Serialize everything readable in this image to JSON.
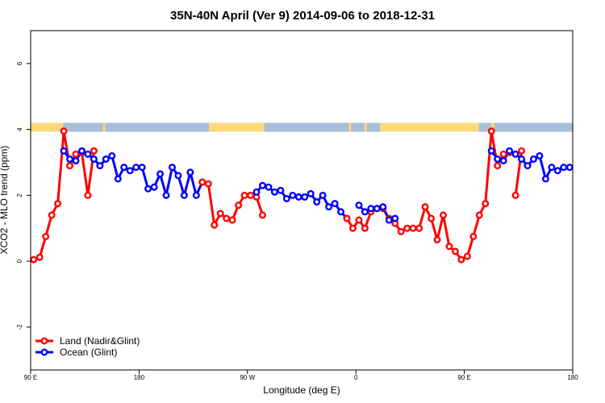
{
  "chart_data": {
    "type": "line",
    "title": "35N-40N April (Ver 9)   2014-09-06 to 2018-12-31",
    "xlabel": "Longitude (deg E)",
    "ylabel": "XCO2 - MLO trend (ppm)",
    "xlim": [
      90,
      540
    ],
    "ylim": [
      -3.3,
      7
    ],
    "x_ticks": [
      {
        "value": 90,
        "label": "90 E"
      },
      {
        "value": 180,
        "label": "180"
      },
      {
        "value": 270,
        "label": "90 W"
      },
      {
        "value": 360,
        "label": "0"
      },
      {
        "value": 450,
        "label": "90 E"
      },
      {
        "value": 540,
        "label": "180"
      }
    ],
    "y_ticks": [
      {
        "value": -2,
        "label": "-2"
      },
      {
        "value": 0,
        "label": "0"
      },
      {
        "value": 2,
        "label": "2"
      },
      {
        "value": 4,
        "label": "4"
      },
      {
        "value": 6,
        "label": "6"
      }
    ],
    "grid": false,
    "legend_position": "bottom-left",
    "land_ocean_strip": {
      "y_bottom": 3.93,
      "y_top": 4.2,
      "land_color": "#fbd97a",
      "ocean_color": "#a7bedb",
      "land_ranges": [
        [
          90,
          117
        ],
        [
          150,
          152
        ],
        [
          238,
          284
        ],
        [
          354,
          356
        ],
        [
          367,
          369
        ],
        [
          380,
          462
        ],
        [
          472,
          475
        ]
      ]
    },
    "series": [
      {
        "name": "Land (Nadir&Glint)",
        "color": "#ff0000",
        "x": [
          92.5,
          97.5,
          102.5,
          107.5,
          112.5,
          117.5,
          122.5,
          127.5,
          132.5,
          137.5,
          142.5
        ],
        "y": [
          0.05,
          0.12,
          0.75,
          1.4,
          1.75,
          3.95,
          2.9,
          3.25,
          3.3,
          2.0,
          3.35
        ],
        "segments": [
          [
            0,
            10
          ]
        ]
      },
      {
        "name": "Ocean (Glint)",
        "color": "#0000ff",
        "x": [
          117.5,
          122.5,
          127.5,
          132.5,
          137.5,
          142.5,
          147.5,
          152.5,
          157.5,
          162.5,
          167.5,
          172.5,
          177.5,
          182.5,
          187.5,
          192.5,
          197.5,
          202.5,
          207.5,
          212.5,
          217.5,
          222.5,
          227.5,
          232.5
        ],
        "y": [
          3.35,
          3.1,
          3.05,
          3.35,
          3.25,
          3.1,
          2.9,
          3.1,
          3.2,
          2.5,
          2.85,
          2.75,
          2.85,
          2.85,
          2.2,
          2.25,
          2.65,
          2.0,
          2.85,
          2.6,
          2.0,
          2.7,
          2.0,
          2.4
        ]
      },
      {
        "name": "Land (Nadir&Glint)",
        "color": "#ff0000",
        "x": [
          232.5,
          237.5,
          242.5,
          247.5,
          252.5,
          257.5,
          262.5,
          267.5,
          272.5,
          277.5,
          282.5
        ],
        "y": [
          2.4,
          2.35,
          1.1,
          1.45,
          1.3,
          1.25,
          1.7,
          2.0,
          2.0,
          1.95,
          1.4
        ]
      },
      {
        "name": "Ocean (Glint)",
        "color": "#0000ff",
        "x": [
          277.5,
          282.5,
          287.5,
          292.5,
          297.5,
          302.5,
          307.5,
          312.5,
          317.5,
          322.5,
          327.5,
          332.5,
          337.5,
          342.5,
          347.5,
          352.5
        ],
        "y": [
          2.1,
          2.3,
          2.25,
          2.1,
          2.15,
          1.9,
          2.0,
          1.95,
          1.95,
          2.05,
          1.8,
          2.0,
          1.65,
          1.75,
          1.5,
          1.3
        ]
      },
      {
        "name": "Land (Nadir&Glint)",
        "color": "#ff0000",
        "x": [
          352.5,
          357.5,
          362.5,
          367.5,
          372.5,
          377.5,
          382.5,
          387.5,
          392.5,
          397.5,
          402.5,
          407.5,
          412.5,
          417.5,
          422.5,
          427.5,
          432.5,
          437.5,
          442.5,
          447.5,
          452.5,
          457.5,
          462.5,
          467.5,
          472.5,
          477.5,
          482.5,
          487.5
        ],
        "y": [
          1.3,
          1.0,
          1.25,
          1.0,
          1.5,
          1.6,
          1.6,
          1.3,
          1.15,
          0.9,
          1.0,
          1.0,
          1.0,
          1.65,
          1.3,
          0.65,
          1.4,
          0.45,
          0.3,
          0.05,
          0.15,
          0.75,
          1.4,
          1.75,
          3.95,
          2.9,
          3.25,
          3.3
        ]
      },
      {
        "name": "Ocean (Glint)",
        "color": "#0000ff",
        "x": [
          362.5,
          367.5,
          372.5,
          377.5,
          382.5,
          387.5,
          392.5
        ],
        "y": [
          1.7,
          1.5,
          1.6,
          1.6,
          1.65,
          1.25,
          1.3
        ]
      },
      {
        "name": "Land (Nadir&Glint)",
        "color": "#ff0000",
        "x": [
          492.5,
          497.5
        ],
        "y": [
          2.0,
          3.35
        ]
      },
      {
        "name": "Ocean (Glint)",
        "color": "#0000ff",
        "x": [
          472.5,
          477.5,
          482.5,
          487.5,
          492.5,
          497.5,
          502.5,
          507.5,
          512.5,
          517.5,
          522.5,
          527.5,
          532.5,
          537.5
        ],
        "y": [
          3.35,
          3.1,
          3.05,
          3.35,
          3.25,
          3.1,
          2.9,
          3.1,
          3.2,
          2.5,
          2.85,
          2.75,
          2.85,
          2.85
        ]
      }
    ],
    "legend": [
      {
        "label": "Land (Nadir&Glint)",
        "color": "#ff0000"
      },
      {
        "label": "Ocean (Glint)",
        "color": "#0000ff"
      }
    ]
  }
}
